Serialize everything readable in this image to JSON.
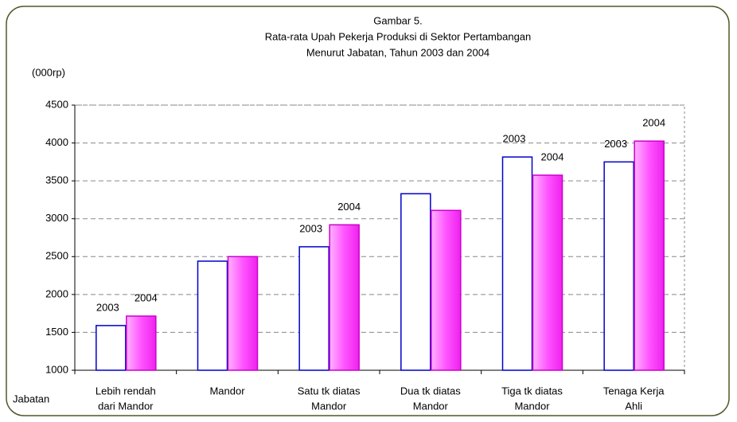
{
  "chart_data": {
    "type": "bar",
    "title": [
      "Gambar 5.",
      "Rata-rata Upah Pekerja Produksi di Sektor Pertambangan",
      "Menurut Jabatan, Tahun 2003 dan 2004"
    ],
    "y_label": "(000rp)",
    "x_label": "Jabatan",
    "categories": [
      [
        "Lebih rendah",
        "dari Mandor"
      ],
      [
        "Mandor"
      ],
      [
        "Satu tk diatas",
        "Mandor"
      ],
      [
        "Dua tk diatas",
        "Mandor"
      ],
      [
        "Tiga tk diatas",
        "Mandor"
      ],
      [
        "Tenaga Kerja",
        "Ahli"
      ]
    ],
    "series": [
      {
        "name": "2003",
        "color": "#ffffff",
        "edge": "#0000cc",
        "values": [
          1590,
          2440,
          2630,
          3330,
          3815,
          3750
        ],
        "labels": [
          "2003",
          null,
          "2003",
          null,
          "2003",
          "2003"
        ]
      },
      {
        "name": "2004",
        "color": "#ff55ff",
        "edge": "#cc00cc",
        "values": [
          1715,
          2500,
          2920,
          3110,
          3575,
          4025
        ],
        "labels": [
          "2004",
          null,
          "2004",
          null,
          "2004",
          "2004"
        ]
      }
    ],
    "ylim": [
      1000,
      4500
    ],
    "yticks": [
      1000,
      1500,
      2000,
      2500,
      3000,
      3500,
      4000,
      4500
    ],
    "grid": true
  }
}
